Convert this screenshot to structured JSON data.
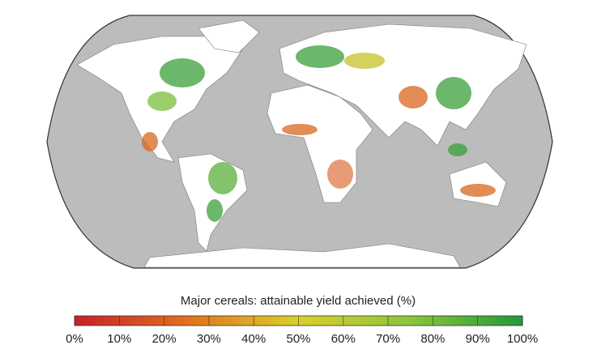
{
  "legend": {
    "title": "Major cereals: attainable yield achieved (%)",
    "lim": [
      0,
      100
    ],
    "ticks": [
      {
        "value": 0,
        "label": "0%"
      },
      {
        "value": 10,
        "label": "10%"
      },
      {
        "value": 20,
        "label": "20%"
      },
      {
        "value": 30,
        "label": "30%"
      },
      {
        "value": 40,
        "label": "40%"
      },
      {
        "value": 50,
        "label": "50%"
      },
      {
        "value": 60,
        "label": "60%"
      },
      {
        "value": 70,
        "label": "70%"
      },
      {
        "value": 80,
        "label": "80%"
      },
      {
        "value": 90,
        "label": "90%"
      },
      {
        "value": 100,
        "label": "100%"
      }
    ],
    "colors": [
      "#c4202a",
      "#e2701e",
      "#d9d02a",
      "#8cc43a",
      "#22993a"
    ]
  }
}
